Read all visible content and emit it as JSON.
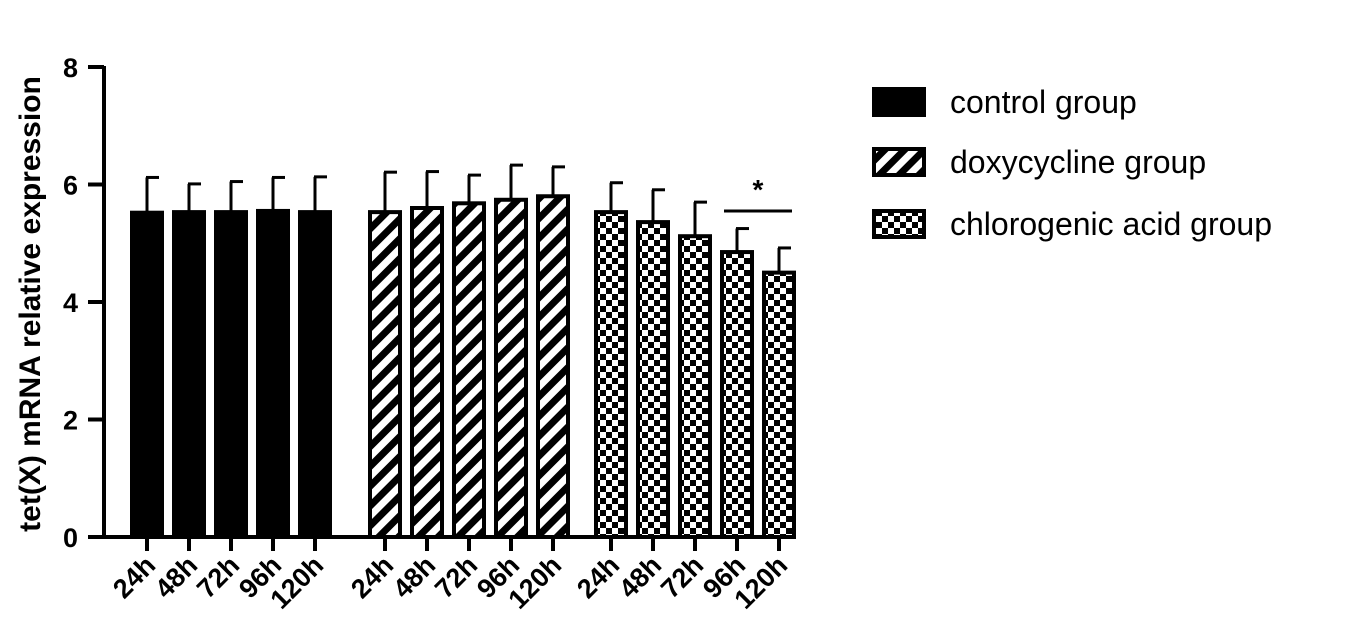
{
  "chart_data": {
    "type": "bar",
    "ylabel": "tet(X) mRNA relative expression",
    "xlabel": "",
    "ylim": [
      0,
      8
    ],
    "yticks": [
      0,
      2,
      4,
      6,
      8
    ],
    "grid": false,
    "legend_position": "right",
    "categories": [
      "24h",
      "48h",
      "72h",
      "96h",
      "120h"
    ],
    "series": [
      {
        "name": "control group",
        "pattern": "solid",
        "values": [
          5.52,
          5.53,
          5.53,
          5.55,
          5.53
        ],
        "errors": [
          0.6,
          0.48,
          0.52,
          0.57,
          0.6
        ]
      },
      {
        "name": "doxycycline group",
        "pattern": "diagonal-stripes",
        "values": [
          5.53,
          5.6,
          5.68,
          5.74,
          5.8
        ],
        "errors": [
          0.68,
          0.62,
          0.48,
          0.59,
          0.5
        ]
      },
      {
        "name": "chlorogenic acid group",
        "pattern": "checkerboard",
        "values": [
          5.53,
          5.36,
          5.12,
          4.85,
          4.5
        ],
        "errors": [
          0.5,
          0.55,
          0.58,
          0.4,
          0.42
        ]
      }
    ],
    "annotations": [
      {
        "text": "*",
        "series": "chlorogenic acid group",
        "from": "96h",
        "to": "120h"
      }
    ],
    "colors": {
      "bar": "#000000",
      "background": "#ffffff"
    }
  }
}
